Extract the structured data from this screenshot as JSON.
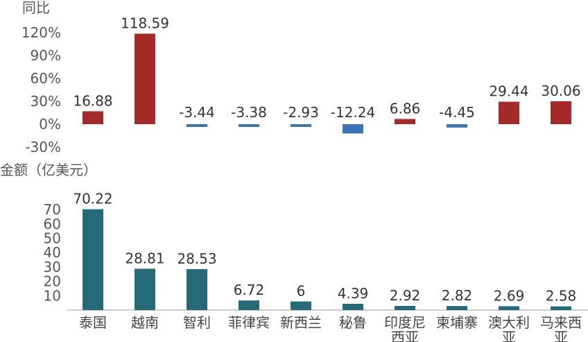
{
  "chart_data": [
    {
      "type": "bar",
      "ylabel": "同比",
      "categories": [
        "泰国",
        "越南",
        "智利",
        "菲律宾",
        "新西兰",
        "秘鲁",
        "印度尼西亚",
        "柬埔寨",
        "澳大利亚",
        "马来西亚"
      ],
      "values": [
        16.88,
        118.59,
        -3.44,
        -3.38,
        -2.93,
        -12.24,
        6.86,
        -4.45,
        29.44,
        30.06
      ],
      "value_labels": [
        "16.88",
        "118.59",
        "-3.44",
        "-3.38",
        "-2.93",
        "-12.24",
        "6.86",
        "-4.45",
        "29.44",
        "30.06"
      ],
      "y_ticks": [
        "120%",
        "90%",
        "60%",
        "30%",
        "0%",
        "-30%"
      ],
      "y_tick_values": [
        120,
        90,
        60,
        30,
        0,
        -30
      ],
      "ylim": [
        -30,
        120
      ],
      "grid": false,
      "colors": {
        "positive": "#A52A2A",
        "negative": "#3A74B8"
      }
    },
    {
      "type": "bar",
      "ylabel": "金额（亿美元）",
      "categories": [
        "泰国",
        "越南",
        "智利",
        "菲律宾",
        "新西兰",
        "秘鲁",
        "印度尼西亚",
        "柬埔寨",
        "澳大利亚",
        "马来西亚"
      ],
      "category_lines": [
        [
          "泰国"
        ],
        [
          "越南"
        ],
        [
          "智利"
        ],
        [
          "菲律宾"
        ],
        [
          "新西兰"
        ],
        [
          "秘鲁"
        ],
        [
          "印度尼",
          "西亚"
        ],
        [
          "柬埔寨"
        ],
        [
          "澳大利",
          "亚"
        ],
        [
          "马来西",
          "亚"
        ]
      ],
      "values": [
        70.22,
        28.81,
        28.53,
        6.72,
        6,
        4.39,
        2.92,
        2.82,
        2.69,
        2.58
      ],
      "value_labels": [
        "70.22",
        "28.81",
        "28.53",
        "6.72",
        "6",
        "4.39",
        "2.92",
        "2.82",
        "2.69",
        "2.58"
      ],
      "y_ticks": [
        "70",
        "60",
        "50",
        "40",
        "30",
        "20",
        "10"
      ],
      "y_tick_values": [
        70,
        60,
        50,
        40,
        30,
        20,
        10
      ],
      "ylim": [
        0,
        75
      ],
      "grid": false,
      "colors": {
        "bar": "#256A78"
      }
    }
  ]
}
